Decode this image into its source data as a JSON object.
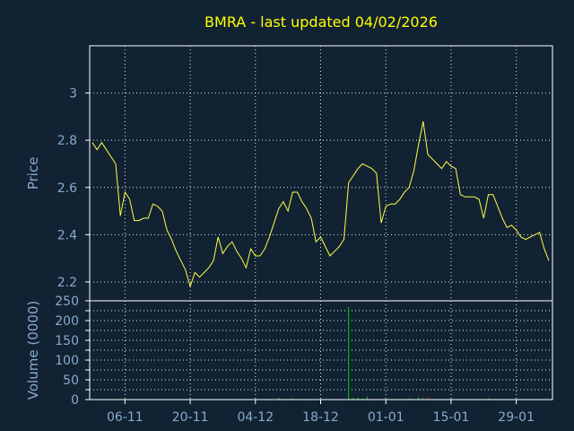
{
  "chart_data": [
    {
      "type": "line",
      "title": "BMRA - last updated 04/02/2026",
      "ylabel": "Price",
      "ylim": [
        2.12,
        3.2
      ],
      "yticks": [
        2.2,
        2.4,
        2.6,
        2.8,
        3
      ],
      "x_tick_labels": [
        "06-11",
        "20-11",
        "04-12",
        "18-12",
        "01-01",
        "15-01",
        "29-01"
      ],
      "x_tick_index": [
        7,
        21,
        35,
        49,
        63,
        77,
        91
      ],
      "grid": true,
      "line_color": "#ffff44",
      "series": [
        {
          "values": [
            2.79,
            2.76,
            2.79,
            2.76,
            2.73,
            2.7,
            2.48,
            2.58,
            2.55,
            2.46,
            2.46,
            2.47,
            2.47,
            2.53,
            2.52,
            2.5,
            2.42,
            2.38,
            2.33,
            2.29,
            2.25,
            2.18,
            2.24,
            2.22,
            2.24,
            2.26,
            2.29,
            2.39,
            2.32,
            2.35,
            2.37,
            2.33,
            2.3,
            2.26,
            2.34,
            2.31,
            2.31,
            2.34,
            2.39,
            2.45,
            2.51,
            2.54,
            2.5,
            2.58,
            2.58,
            2.54,
            2.51,
            2.47,
            2.37,
            2.39,
            2.35,
            2.31,
            2.33,
            2.35,
            2.38,
            2.62,
            2.65,
            2.68,
            2.7,
            2.69,
            2.68,
            2.66,
            2.45,
            2.52,
            2.53,
            2.53,
            2.55,
            2.58,
            2.6,
            2.67,
            2.78,
            2.88,
            2.74,
            2.72,
            2.7,
            2.68,
            2.71,
            2.69,
            2.68,
            2.57,
            2.56,
            2.56,
            2.56,
            2.55,
            2.47,
            2.57,
            2.57,
            2.52,
            2.47,
            2.43,
            2.44,
            2.42,
            2.39,
            2.38,
            2.39,
            2.4,
            2.41,
            2.34,
            2.29
          ]
        }
      ]
    },
    {
      "type": "bar",
      "ylabel": "Volume (0000)",
      "ylim": [
        0,
        250
      ],
      "yticks": [
        0,
        25,
        50,
        75,
        100,
        125,
        150,
        175,
        200,
        225,
        250
      ],
      "ytick_labels": [
        "0",
        "50",
        "100",
        "150",
        "200",
        "250"
      ],
      "bar_color_up": "#00cc00",
      "bar_color_down": "#cc0000",
      "series": [
        {
          "values": [
            1.5,
            0.5,
            1,
            0.5,
            0.5,
            0.5,
            1.5,
            1,
            0.5,
            0.5,
            0.5,
            0.5,
            0.5,
            0.5,
            0.5,
            1,
            0.5,
            0.5,
            0.5,
            0.5,
            0.5,
            1.5,
            0.5,
            0.5,
            0.5,
            0.5,
            0.5,
            1,
            0.5,
            0.5,
            0.5,
            0.5,
            0.5,
            0.5,
            1,
            0.5,
            0.5,
            0.5,
            0.5,
            0.5,
            5,
            1,
            0.5,
            3,
            2,
            0.5,
            0.5,
            0.5,
            0.5,
            0.5,
            0.5,
            0.5,
            0.5,
            0.5,
            0.5,
            234,
            4,
            6,
            3,
            8,
            0.5,
            0.5,
            2,
            5,
            0.5,
            1,
            1,
            1,
            3,
            2,
            6,
            4,
            8,
            0.5,
            0.5,
            0.5,
            0.5,
            0.5,
            0.5,
            0.5,
            0.5,
            0.5,
            0.5,
            0.5,
            0.5,
            3,
            1,
            0.5,
            0.5,
            0.5,
            0.5,
            0.5,
            0.5,
            0.5,
            0.5,
            0.5,
            0.5,
            0.5,
            0.5
          ],
          "down": [
            false,
            false,
            false,
            false,
            false,
            false,
            false,
            false,
            false,
            false,
            false,
            false,
            false,
            false,
            false,
            false,
            false,
            false,
            false,
            false,
            false,
            false,
            false,
            false,
            false,
            false,
            false,
            false,
            false,
            false,
            false,
            false,
            false,
            false,
            false,
            false,
            false,
            false,
            false,
            false,
            false,
            false,
            false,
            false,
            false,
            false,
            false,
            false,
            false,
            false,
            false,
            false,
            false,
            false,
            false,
            false,
            false,
            false,
            false,
            false,
            false,
            false,
            true,
            false,
            false,
            false,
            false,
            false,
            false,
            false,
            false,
            false,
            true,
            false,
            false,
            false,
            false,
            false,
            false,
            false,
            false,
            false,
            false,
            false,
            false,
            false,
            false,
            false,
            false,
            false,
            false,
            false,
            false,
            false,
            false,
            false,
            false,
            false,
            false
          ]
        }
      ]
    }
  ]
}
